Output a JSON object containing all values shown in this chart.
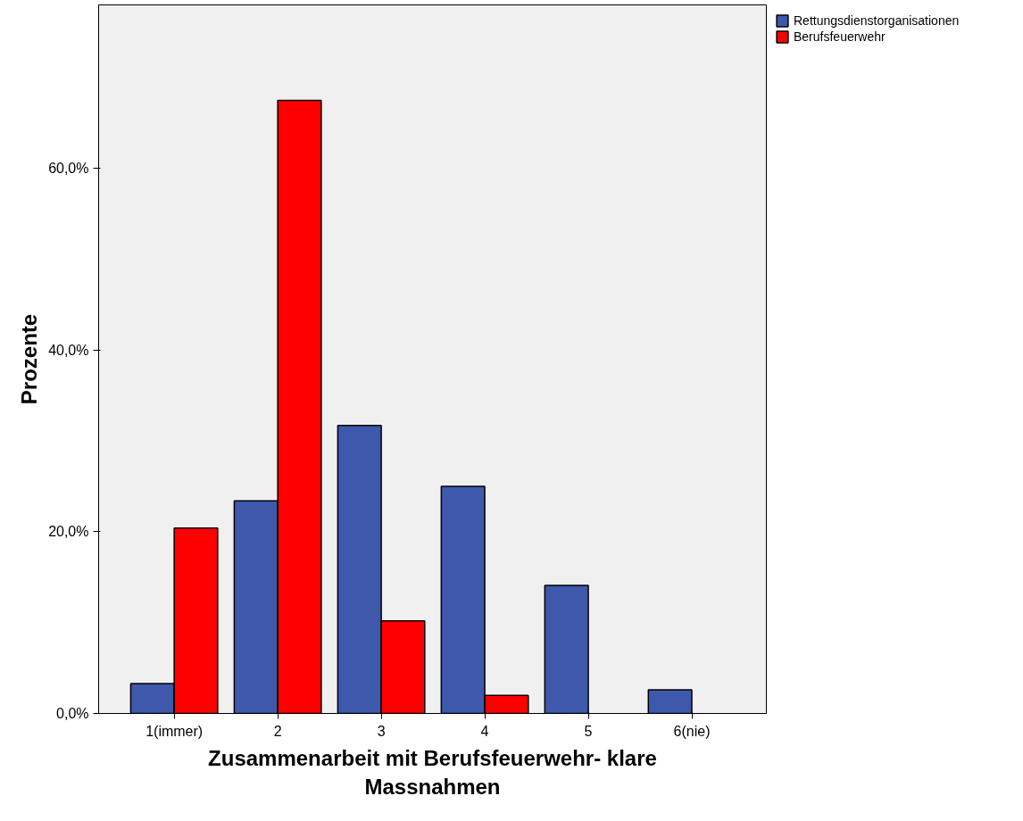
{
  "chart_data": {
    "type": "bar",
    "xlabel": "Zusammenarbeit mit Berufsfeuerwehr- klare Massnahmen",
    "ylabel": "Prozente",
    "categories": [
      "1(immer)",
      "2",
      "3",
      "4",
      "5",
      "6(nie)"
    ],
    "series": [
      {
        "name": "Rettungsdienstorganisationen",
        "color": "#3e58ac",
        "values": [
          3.3,
          23.4,
          31.7,
          25.0,
          14.1,
          2.6
        ]
      },
      {
        "name": "Berufsfeuerwehr",
        "color": "#ff0000",
        "values": [
          20.4,
          67.5,
          10.2,
          2.0,
          0,
          0
        ]
      }
    ],
    "ylim": [
      0,
      78
    ],
    "yticks": [
      {
        "value": 0,
        "label": "0,0%"
      },
      {
        "value": 20,
        "label": "20,0%"
      },
      {
        "value": 40,
        "label": "40,0%"
      },
      {
        "value": 60,
        "label": "60,0%"
      }
    ],
    "grid": false,
    "legend": "top right"
  }
}
